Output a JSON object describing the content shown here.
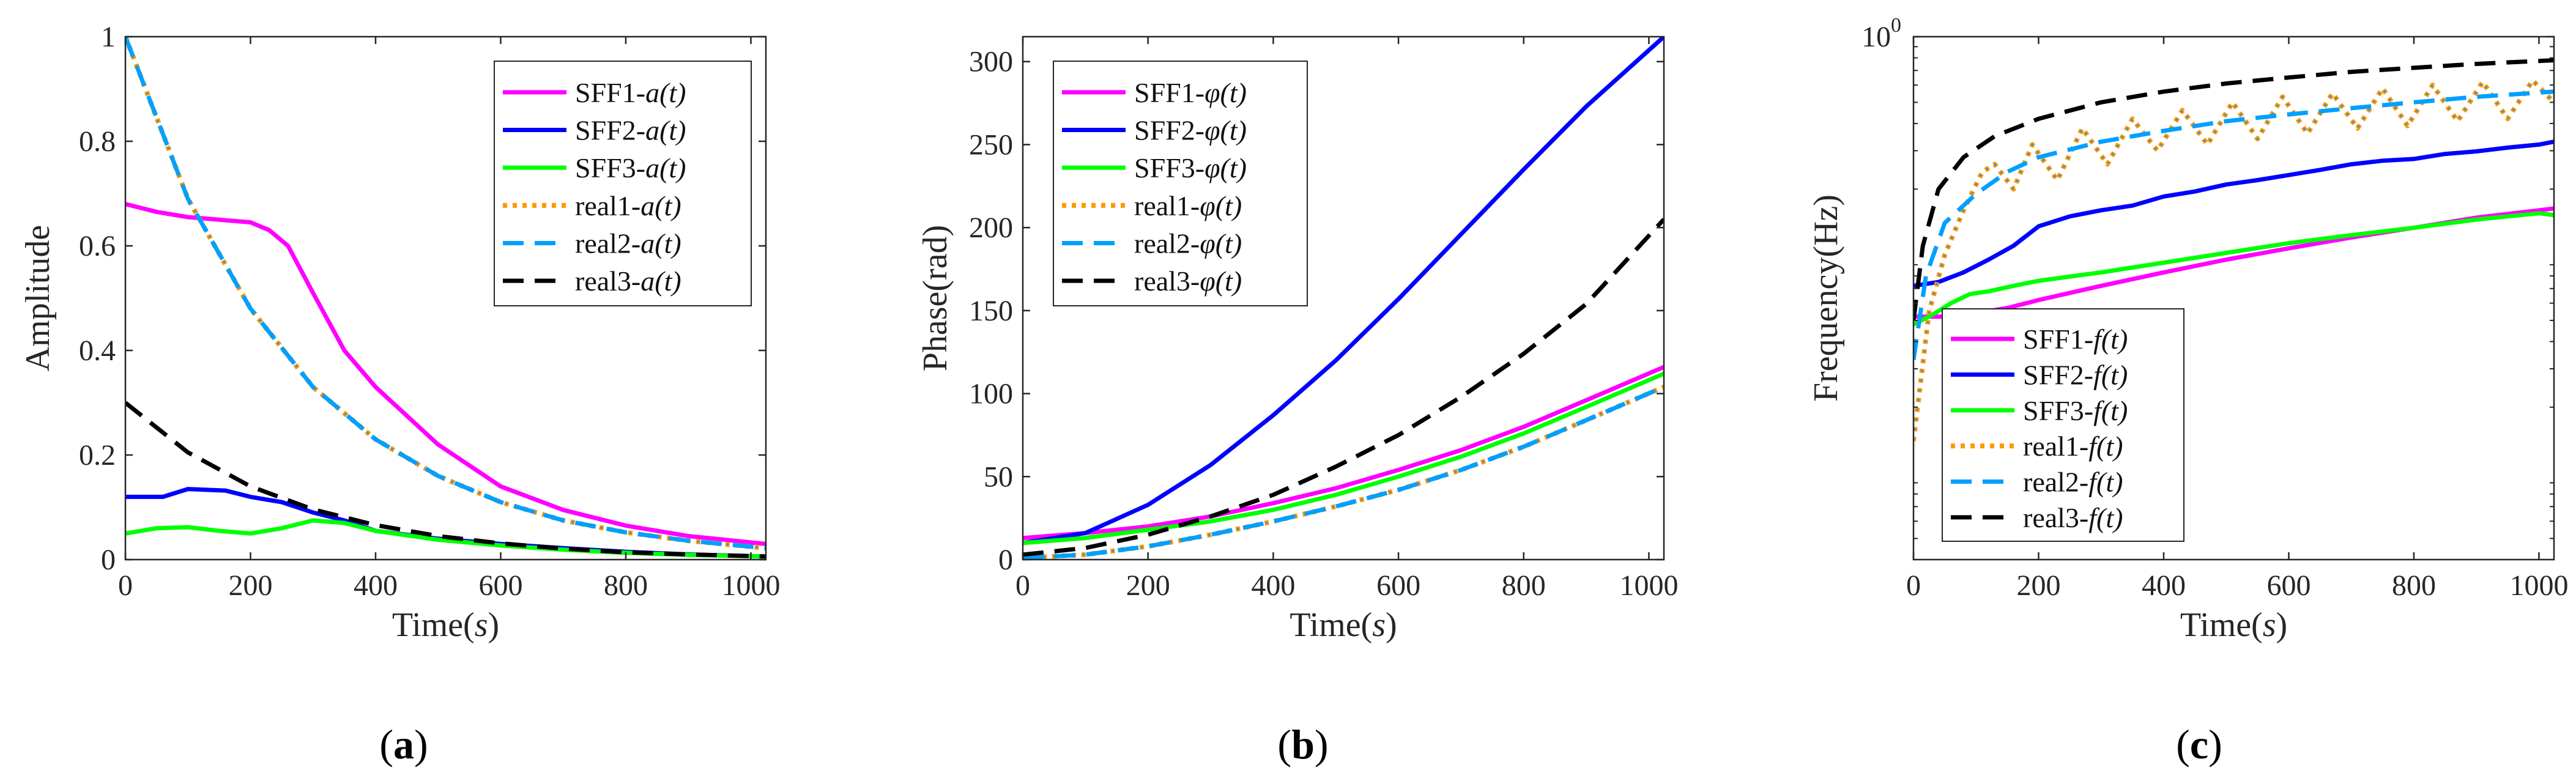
{
  "figure": {
    "colors": {
      "SFF1": "#ff00ff",
      "SFF2": "#0000ff",
      "SFF3": "#00ff00",
      "real1": "#ff9900",
      "real2": "#00a0ff",
      "real3": "#000000",
      "real1_dot": "#1e90ff"
    }
  },
  "chart_data": [
    {
      "type": "line",
      "id": "a",
      "caption": {
        "open": "(",
        "letter": "a",
        "close": ")"
      },
      "ylabel": "Amplitude",
      "xlabel": {
        "prefix": "Time(",
        "unit": "s",
        "suffix": ")"
      },
      "xlim": [
        0,
        1024
      ],
      "ylim": [
        0,
        1
      ],
      "xticks": [
        0,
        200,
        400,
        600,
        800,
        1000
      ],
      "xtick_labels": [
        "0",
        "200",
        "400",
        "600",
        "800",
        "1000"
      ],
      "yticks": [
        0,
        0.2,
        0.4,
        0.6,
        0.8,
        1
      ],
      "ytick_labels": [
        "0",
        "0.2",
        "0.4",
        "0.6",
        "0.8",
        "1"
      ],
      "legend_position": "top-right",
      "series": [
        {
          "name": "SFF1",
          "legend_prefix": "SFF1-",
          "legend_symbol": "a(t)",
          "style": "solid",
          "color_key": "SFF1",
          "x": [
            0,
            50,
            100,
            150,
            200,
            230,
            260,
            300,
            350,
            400,
            500,
            600,
            700,
            800,
            900,
            1024
          ],
          "y": [
            0.68,
            0.665,
            0.655,
            0.65,
            0.645,
            0.63,
            0.6,
            0.51,
            0.4,
            0.33,
            0.22,
            0.14,
            0.095,
            0.065,
            0.045,
            0.03
          ]
        },
        {
          "name": "SFF2",
          "legend_prefix": "SFF2-",
          "legend_symbol": "a(t)",
          "style": "solid",
          "color_key": "SFF2",
          "x": [
            0,
            60,
            100,
            160,
            200,
            250,
            300,
            350,
            400,
            500,
            600,
            700,
            800,
            900,
            1024
          ],
          "y": [
            0.12,
            0.12,
            0.135,
            0.132,
            0.12,
            0.11,
            0.09,
            0.075,
            0.055,
            0.04,
            0.03,
            0.022,
            0.015,
            0.01,
            0.006
          ]
        },
        {
          "name": "SFF3",
          "legend_prefix": "SFF3-",
          "legend_symbol": "a(t)",
          "style": "solid",
          "color_key": "SFF3",
          "x": [
            0,
            50,
            100,
            150,
            200,
            250,
            300,
            350,
            400,
            500,
            600,
            700,
            800,
            900,
            1024
          ],
          "y": [
            0.05,
            0.06,
            0.062,
            0.055,
            0.05,
            0.06,
            0.075,
            0.07,
            0.055,
            0.038,
            0.027,
            0.019,
            0.013,
            0.009,
            0.006
          ]
        },
        {
          "name": "real1",
          "legend_prefix": "real1-",
          "legend_symbol": "a(t)",
          "style": "dotted",
          "color_key": "real1",
          "x": [
            0,
            100,
            200,
            300,
            400,
            500,
            600,
            700,
            800,
            900,
            1024
          ],
          "y": [
            1.0,
            0.69,
            0.48,
            0.33,
            0.23,
            0.16,
            0.11,
            0.075,
            0.052,
            0.036,
            0.022
          ]
        },
        {
          "name": "real2",
          "legend_prefix": "real2-",
          "legend_symbol": "a(t)",
          "style": "dashed",
          "color_key": "real2",
          "x": [
            0,
            100,
            200,
            300,
            400,
            500,
            600,
            700,
            800,
            900,
            1024
          ],
          "y": [
            1.0,
            0.69,
            0.48,
            0.33,
            0.23,
            0.16,
            0.11,
            0.075,
            0.052,
            0.036,
            0.022
          ]
        },
        {
          "name": "real3",
          "legend_prefix": "real3-",
          "legend_symbol": "a(t)",
          "style": "dashed",
          "color_key": "real3",
          "x": [
            0,
            100,
            200,
            300,
            400,
            500,
            600,
            700,
            800,
            900,
            1024
          ],
          "y": [
            0.3,
            0.205,
            0.14,
            0.096,
            0.066,
            0.045,
            0.031,
            0.021,
            0.014,
            0.01,
            0.006
          ]
        }
      ]
    },
    {
      "type": "line",
      "id": "b",
      "caption": {
        "open": "(",
        "letter": "b",
        "close": ")"
      },
      "ylabel": "Phase(rad)",
      "xlabel": {
        "prefix": "Time(",
        "unit": "s",
        "suffix": ")"
      },
      "xlim": [
        0,
        1024
      ],
      "ylim": [
        0,
        315
      ],
      "xticks": [
        0,
        200,
        400,
        600,
        800,
        1000
      ],
      "xtick_labels": [
        "0",
        "200",
        "400",
        "600",
        "800",
        "1000"
      ],
      "yticks": [
        0,
        50,
        100,
        150,
        200,
        250,
        300
      ],
      "ytick_labels": [
        "0",
        "50",
        "100",
        "150",
        "200",
        "250",
        "300"
      ],
      "legend_position": "top-left",
      "series": [
        {
          "name": "SFF1",
          "legend_prefix": "SFF1-",
          "legend_symbol": "φ(t)",
          "style": "solid",
          "color_key": "SFF1",
          "x": [
            0,
            100,
            200,
            300,
            400,
            500,
            600,
            700,
            800,
            900,
            1024
          ],
          "y": [
            13,
            16,
            20,
            26,
            34,
            43,
            54,
            66,
            80,
            96,
            116
          ]
        },
        {
          "name": "SFF2",
          "legend_prefix": "SFF2-",
          "legend_symbol": "φ(t)",
          "style": "solid",
          "color_key": "SFF2",
          "x": [
            0,
            100,
            200,
            300,
            400,
            500,
            600,
            700,
            800,
            900,
            1024
          ],
          "y": [
            10,
            16,
            33,
            57,
            87,
            120,
            157,
            196,
            235,
            273,
            315
          ]
        },
        {
          "name": "SFF3",
          "legend_prefix": "SFF3-",
          "legend_symbol": "φ(t)",
          "style": "solid",
          "color_key": "SFF3",
          "x": [
            0,
            100,
            200,
            300,
            400,
            500,
            600,
            700,
            800,
            900,
            1024
          ],
          "y": [
            10,
            13,
            18,
            23,
            30,
            39,
            50,
            62,
            76,
            92,
            112
          ]
        },
        {
          "name": "real1",
          "legend_prefix": "real1-",
          "legend_symbol": "φ(t)",
          "style": "dotted",
          "color_key": "real1",
          "x": [
            0,
            100,
            200,
            300,
            400,
            500,
            600,
            700,
            800,
            900,
            1024
          ],
          "y": [
            1,
            3,
            8,
            15,
            23,
            32,
            42,
            54,
            68,
            84,
            104
          ]
        },
        {
          "name": "real2",
          "legend_prefix": "real2-",
          "legend_symbol": "φ(t)",
          "style": "dashed",
          "color_key": "real2",
          "x": [
            0,
            100,
            200,
            300,
            400,
            500,
            600,
            700,
            800,
            900,
            1024
          ],
          "y": [
            1,
            3,
            8,
            15,
            23,
            32,
            42,
            54,
            68,
            84,
            104
          ]
        },
        {
          "name": "real3",
          "legend_prefix": "real3-",
          "legend_symbol": "φ(t)",
          "style": "dashed",
          "color_key": "real3",
          "x": [
            0,
            100,
            200,
            300,
            400,
            500,
            600,
            700,
            800,
            900,
            1024
          ],
          "y": [
            3,
            7,
            15,
            26,
            39,
            56,
            75,
            98,
            124,
            154,
            205
          ]
        }
      ]
    },
    {
      "type": "line",
      "id": "c",
      "caption": {
        "open": "(",
        "letter": "c",
        "close": ")"
      },
      "ylabel": "Frequency(Hz)",
      "xlabel": {
        "prefix": "Time(",
        "unit": "s",
        "suffix": ")"
      },
      "yscale": "log",
      "xlim": [
        0,
        1024
      ],
      "ylim": [
        0.004,
        1.0
      ],
      "xticks": [
        0,
        200,
        400,
        600,
        800,
        1000
      ],
      "xtick_labels": [
        "0",
        "200",
        "400",
        "600",
        "800",
        "1000"
      ],
      "yticks": [
        1.0
      ],
      "ytick_labels": [
        {
          "base": "10",
          "exp": "0"
        }
      ],
      "legend_position": "bottom-left",
      "series": [
        {
          "name": "SFF1",
          "legend_prefix": "SFF1-",
          "legend_symbol": "f(t)",
          "style": "solid",
          "color_key": "SFF1",
          "x": [
            0,
            50,
            100,
            150,
            200,
            300,
            400,
            500,
            600,
            700,
            800,
            900,
            1000,
            1024
          ],
          "y": [
            0.052,
            0.052,
            0.054,
            0.057,
            0.062,
            0.072,
            0.083,
            0.095,
            0.107,
            0.12,
            0.133,
            0.148,
            0.16,
            0.163
          ]
        },
        {
          "name": "SFF2",
          "legend_prefix": "SFF2-",
          "legend_symbol": "f(t)",
          "style": "solid",
          "color_key": "SFF2",
          "x": [
            0,
            40,
            80,
            120,
            160,
            200,
            250,
            300,
            350,
            400,
            450,
            500,
            550,
            600,
            650,
            700,
            750,
            800,
            850,
            900,
            950,
            1000,
            1024
          ],
          "y": [
            0.072,
            0.075,
            0.083,
            0.095,
            0.11,
            0.135,
            0.15,
            0.16,
            0.168,
            0.185,
            0.195,
            0.21,
            0.22,
            0.232,
            0.245,
            0.26,
            0.27,
            0.275,
            0.29,
            0.298,
            0.31,
            0.32,
            0.33
          ]
        },
        {
          "name": "SFF3",
          "legend_prefix": "SFF3-",
          "legend_symbol": "f(t)",
          "style": "solid",
          "color_key": "SFF3",
          "x": [
            0,
            30,
            60,
            90,
            120,
            160,
            200,
            300,
            400,
            500,
            600,
            700,
            800,
            900,
            950,
            1000,
            1024
          ],
          "y": [
            0.048,
            0.053,
            0.06,
            0.066,
            0.068,
            0.072,
            0.076,
            0.083,
            0.092,
            0.102,
            0.113,
            0.123,
            0.133,
            0.145,
            0.15,
            0.155,
            0.152
          ]
        },
        {
          "name": "real1",
          "legend_prefix": "real1-",
          "legend_symbol": "f(t)",
          "style": "dotted",
          "color_key": "real1",
          "x": [
            0,
            25,
            50,
            80,
            110,
            130,
            160,
            190,
            230,
            270,
            310,
            350,
            390,
            430,
            470,
            510,
            550,
            590,
            630,
            670,
            710,
            750,
            790,
            830,
            870,
            910,
            950,
            990,
            1024
          ],
          "y": [
            0.014,
            0.055,
            0.1,
            0.16,
            0.24,
            0.26,
            0.2,
            0.32,
            0.22,
            0.38,
            0.26,
            0.42,
            0.3,
            0.46,
            0.32,
            0.5,
            0.34,
            0.53,
            0.36,
            0.55,
            0.38,
            0.58,
            0.39,
            0.6,
            0.41,
            0.62,
            0.42,
            0.63,
            0.5
          ]
        },
        {
          "name": "real2",
          "legend_prefix": "real2-",
          "legend_symbol": "f(t)",
          "style": "dashed",
          "color_key": "real2",
          "x": [
            0,
            20,
            50,
            100,
            150,
            200,
            300,
            400,
            500,
            600,
            700,
            800,
            900,
            1024
          ],
          "y": [
            0.033,
            0.08,
            0.14,
            0.19,
            0.24,
            0.28,
            0.33,
            0.37,
            0.41,
            0.44,
            0.47,
            0.5,
            0.53,
            0.56
          ]
        },
        {
          "name": "real3",
          "legend_prefix": "real3-",
          "legend_symbol": "f(t)",
          "style": "dashed",
          "color_key": "real3",
          "x": [
            0,
            15,
            40,
            80,
            130,
            200,
            300,
            400,
            500,
            600,
            700,
            800,
            900,
            1024
          ],
          "y": [
            0.05,
            0.11,
            0.2,
            0.28,
            0.35,
            0.42,
            0.5,
            0.56,
            0.61,
            0.65,
            0.69,
            0.72,
            0.75,
            0.78
          ]
        }
      ]
    }
  ]
}
